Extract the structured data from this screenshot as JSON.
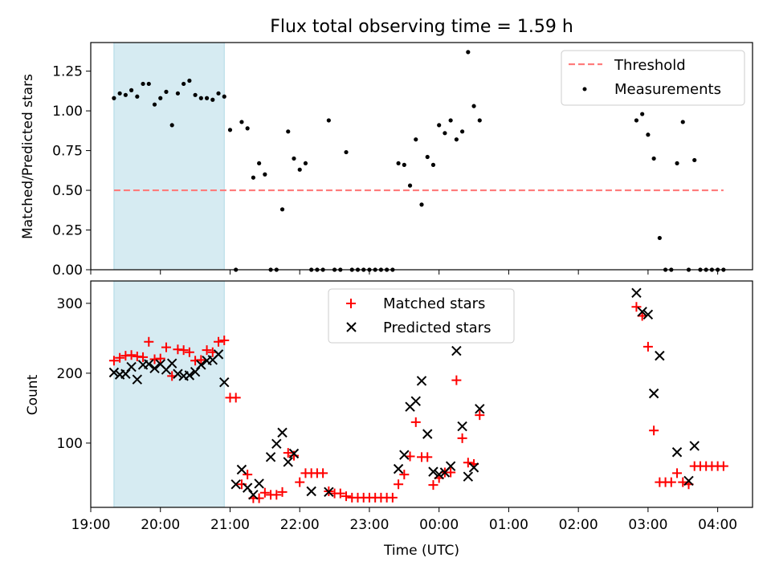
{
  "title": "Flux total observing time = 1.59 h",
  "colors": {
    "matched": "#ff0000",
    "predicted": "#000000",
    "threshold": "#ff7b7b",
    "shade": "#add8e6"
  },
  "chart_data": [
    {
      "type": "scatter",
      "ylabel": "Matched/Predicted stars",
      "xlabel": "",
      "xlim": [
        "19:00",
        "04:30"
      ],
      "ylim": [
        0,
        1.43
      ],
      "yticks": [
        "0.00",
        "0.25",
        "0.50",
        "0.75",
        "1.00",
        "1.25"
      ],
      "shaded_region": [
        "19:20",
        "20:55"
      ],
      "legend": {
        "position": "top-right",
        "entries": [
          "Threshold",
          "Measurements"
        ]
      },
      "threshold": {
        "name": "Threshold",
        "value": 0.5,
        "x_range": [
          "19:20",
          "04:05"
        ]
      },
      "series": [
        {
          "name": "Measurements",
          "points": [
            [
              "19:20",
              1.08
            ],
            [
              "19:25",
              1.11
            ],
            [
              "19:30",
              1.1
            ],
            [
              "19:35",
              1.13
            ],
            [
              "19:40",
              1.09
            ],
            [
              "19:45",
              1.17
            ],
            [
              "19:50",
              1.17
            ],
            [
              "19:55",
              1.04
            ],
            [
              "20:00",
              1.08
            ],
            [
              "20:05",
              1.12
            ],
            [
              "20:10",
              0.91
            ],
            [
              "20:15",
              1.11
            ],
            [
              "20:20",
              1.17
            ],
            [
              "20:25",
              1.19
            ],
            [
              "20:30",
              1.1
            ],
            [
              "20:35",
              1.08
            ],
            [
              "20:40",
              1.08
            ],
            [
              "20:45",
              1.07
            ],
            [
              "20:50",
              1.11
            ],
            [
              "20:55",
              1.09
            ],
            [
              "21:00",
              0.88
            ],
            [
              "21:05",
              0.0
            ],
            [
              "21:10",
              0.93
            ],
            [
              "21:15",
              0.89
            ],
            [
              "21:20",
              0.58
            ],
            [
              "21:25",
              0.67
            ],
            [
              "21:30",
              0.6
            ],
            [
              "21:35",
              0.0
            ],
            [
              "21:40",
              0.0
            ],
            [
              "21:45",
              0.38
            ],
            [
              "21:50",
              0.87
            ],
            [
              "21:55",
              0.7
            ],
            [
              "22:00",
              0.63
            ],
            [
              "22:05",
              0.67
            ],
            [
              "22:10",
              0.0
            ],
            [
              "22:15",
              0.0
            ],
            [
              "22:20",
              0.0
            ],
            [
              "22:25",
              0.94
            ],
            [
              "22:30",
              0.0
            ],
            [
              "22:35",
              0.0
            ],
            [
              "22:40",
              0.74
            ],
            [
              "22:45",
              0.0
            ],
            [
              "22:50",
              0.0
            ],
            [
              "22:55",
              0.0
            ],
            [
              "23:00",
              0.0
            ],
            [
              "23:05",
              0.0
            ],
            [
              "23:10",
              0.0
            ],
            [
              "23:15",
              0.0
            ],
            [
              "23:20",
              0.0
            ],
            [
              "23:25",
              0.67
            ],
            [
              "23:30",
              0.66
            ],
            [
              "23:35",
              0.53
            ],
            [
              "23:40",
              0.82
            ],
            [
              "23:45",
              0.41
            ],
            [
              "23:50",
              0.71
            ],
            [
              "23:55",
              0.66
            ],
            [
              "00:00",
              0.91
            ],
            [
              "00:05",
              0.86
            ],
            [
              "00:10",
              0.94
            ],
            [
              "00:15",
              0.82
            ],
            [
              "00:20",
              0.87
            ],
            [
              "00:25",
              1.37
            ],
            [
              "00:30",
              1.03
            ],
            [
              "00:35",
              0.94
            ],
            [
              "02:50",
              0.94
            ],
            [
              "02:55",
              0.98
            ],
            [
              "03:00",
              0.85
            ],
            [
              "03:05",
              0.7
            ],
            [
              "03:10",
              0.2
            ],
            [
              "03:15",
              0.0
            ],
            [
              "03:20",
              0.0
            ],
            [
              "03:25",
              0.67
            ],
            [
              "03:30",
              0.93
            ],
            [
              "03:35",
              0.0
            ],
            [
              "03:40",
              0.69
            ],
            [
              "03:45",
              0.0
            ],
            [
              "03:50",
              0.0
            ],
            [
              "03:55",
              0.0
            ],
            [
              "04:00",
              0.0
            ],
            [
              "04:05",
              0.0
            ]
          ]
        }
      ]
    },
    {
      "type": "scatter",
      "ylabel": "Count",
      "xlabel": "Time (UTC)",
      "xlim": [
        "19:00",
        "04:30"
      ],
      "ylim": [
        8,
        332
      ],
      "yticks": [
        "100",
        "200",
        "300"
      ],
      "xticks": [
        "19:00",
        "20:00",
        "21:00",
        "22:00",
        "23:00",
        "00:00",
        "01:00",
        "02:00",
        "03:00",
        "04:00"
      ],
      "shaded_region": [
        "19:20",
        "20:55"
      ],
      "legend": {
        "position": "top-center",
        "entries": [
          "Matched stars",
          "Predicted stars"
        ]
      },
      "series": [
        {
          "name": "Matched stars",
          "points": [
            [
              "19:20",
              218
            ],
            [
              "19:25",
              222
            ],
            [
              "19:30",
              225
            ],
            [
              "19:35",
              226
            ],
            [
              "19:40",
              224
            ],
            [
              "19:45",
              223
            ],
            [
              "19:50",
              245
            ],
            [
              "19:55",
              220
            ],
            [
              "20:00",
              221
            ],
            [
              "20:05",
              237
            ],
            [
              "20:10",
              196
            ],
            [
              "20:15",
              234
            ],
            [
              "20:20",
              233
            ],
            [
              "20:25",
              230
            ],
            [
              "20:30",
              218
            ],
            [
              "20:35",
              219
            ],
            [
              "20:40",
              233
            ],
            [
              "20:45",
              230
            ],
            [
              "20:50",
              245
            ],
            [
              "20:55",
              247
            ],
            [
              "21:00",
              165
            ],
            [
              "21:05",
              165
            ],
            [
              "21:10",
              41
            ],
            [
              "21:15",
              55
            ],
            [
              "21:20",
              21
            ],
            [
              "21:25",
              21
            ],
            [
              "21:30",
              29
            ],
            [
              "21:35",
              26
            ],
            [
              "21:40",
              26
            ],
            [
              "21:45",
              30
            ],
            [
              "21:50",
              86
            ],
            [
              "21:55",
              82
            ],
            [
              "22:00",
              44
            ],
            [
              "22:05",
              57
            ],
            [
              "22:10",
              57
            ],
            [
              "22:15",
              57
            ],
            [
              "22:20",
              57
            ],
            [
              "22:25",
              31
            ],
            [
              "22:30",
              28
            ],
            [
              "22:35",
              28
            ],
            [
              "22:40",
              24
            ],
            [
              "22:45",
              22
            ],
            [
              "22:50",
              22
            ],
            [
              "22:55",
              22
            ],
            [
              "23:00",
              22
            ],
            [
              "23:05",
              22
            ],
            [
              "23:10",
              22
            ],
            [
              "23:15",
              22
            ],
            [
              "23:20",
              22
            ],
            [
              "23:25",
              41
            ],
            [
              "23:30",
              55
            ],
            [
              "23:35",
              81
            ],
            [
              "23:40",
              130
            ],
            [
              "23:45",
              80
            ],
            [
              "23:50",
              80
            ],
            [
              "23:55",
              40
            ],
            [
              "00:00",
              50
            ],
            [
              "00:05",
              58
            ],
            [
              "00:10",
              58
            ],
            [
              "00:15",
              190
            ],
            [
              "00:20",
              107
            ],
            [
              "00:25",
              72
            ],
            [
              "00:30",
              70
            ],
            [
              "00:35",
              140
            ],
            [
              "02:50",
              295
            ],
            [
              "02:55",
              282
            ],
            [
              "03:00",
              238
            ],
            [
              "03:05",
              118
            ],
            [
              "03:10",
              44
            ],
            [
              "03:15",
              44
            ],
            [
              "03:20",
              44
            ],
            [
              "03:25",
              57
            ],
            [
              "03:30",
              44
            ],
            [
              "03:35",
              41
            ],
            [
              "03:40",
              67
            ],
            [
              "03:45",
              67
            ],
            [
              "03:50",
              67
            ],
            [
              "03:55",
              67
            ],
            [
              "04:00",
              67
            ],
            [
              "04:05",
              67
            ]
          ]
        },
        {
          "name": "Predicted stars",
          "points": [
            [
              "19:20",
              201
            ],
            [
              "19:25",
              198
            ],
            [
              "19:30",
              199
            ],
            [
              "19:35",
              209
            ],
            [
              "19:40",
              191
            ],
            [
              "19:45",
              212
            ],
            [
              "19:50",
              213
            ],
            [
              "19:55",
              207
            ],
            [
              "20:00",
              213
            ],
            [
              "20:05",
              205
            ],
            [
              "20:10",
              214
            ],
            [
              "20:15",
              199
            ],
            [
              "20:20",
              196
            ],
            [
              "20:25",
              197
            ],
            [
              "20:30",
              202
            ],
            [
              "20:35",
              212
            ],
            [
              "20:40",
              218
            ],
            [
              "20:45",
              219
            ],
            [
              "20:50",
              227
            ],
            [
              "20:55",
              187
            ],
            [
              "21:05",
              41
            ],
            [
              "21:10",
              62
            ],
            [
              "21:15",
              36
            ],
            [
              "21:20",
              26
            ],
            [
              "21:25",
              42
            ],
            [
              "21:35",
              80
            ],
            [
              "21:40",
              99
            ],
            [
              "21:45",
              115
            ],
            [
              "21:50",
              73
            ],
            [
              "21:55",
              85
            ],
            [
              "22:10",
              31
            ],
            [
              "22:25",
              30
            ],
            [
              "23:25",
              63
            ],
            [
              "23:30",
              83
            ],
            [
              "23:35",
              152
            ],
            [
              "23:40",
              160
            ],
            [
              "23:45",
              189
            ],
            [
              "23:50",
              113
            ],
            [
              "23:55",
              59
            ],
            [
              "00:00",
              55
            ],
            [
              "00:05",
              58
            ],
            [
              "00:10",
              67
            ],
            [
              "00:15",
              232
            ],
            [
              "00:20",
              124
            ],
            [
              "00:25",
              52
            ],
            [
              "00:30",
              65
            ],
            [
              "00:35",
              149
            ],
            [
              "02:50",
              315
            ],
            [
              "02:55",
              288
            ],
            [
              "03:00",
              284
            ],
            [
              "03:05",
              171
            ],
            [
              "03:10",
              225
            ],
            [
              "03:25",
              87
            ],
            [
              "03:35",
              46
            ],
            [
              "03:40",
              96
            ]
          ]
        }
      ]
    }
  ]
}
